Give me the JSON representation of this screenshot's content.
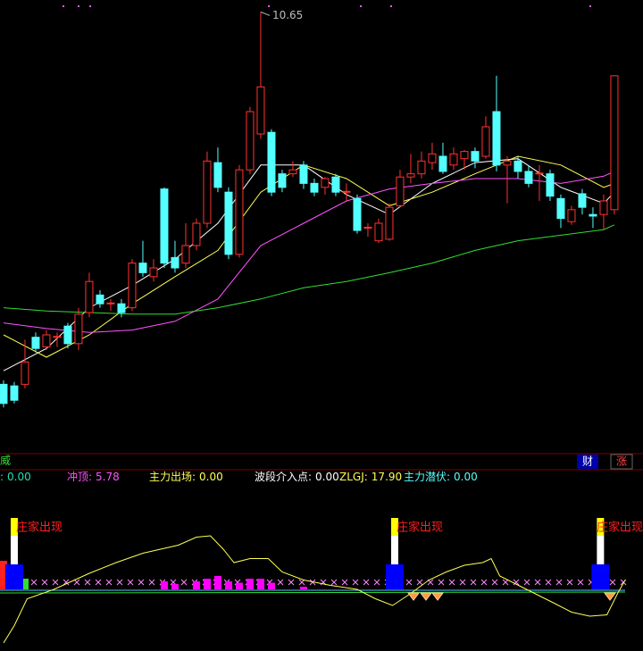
{
  "toolbar": {
    "left": "威",
    "buttons": [
      "财",
      "涨"
    ]
  },
  "chart_data": [
    {
      "type": "candlestick",
      "xlim": [
        -0.33,
        59.67
      ],
      "ylim": [
        5.2,
        10.8
      ],
      "up_color": "#ff3232",
      "down_color": "#54ffff",
      "high_label_index": 24,
      "open": [
        5.98,
        5.96,
        5.98,
        6.57,
        6.45,
        6.57,
        6.71,
        6.49,
        6.88,
        7.1,
        6.99,
        6.99,
        6.94,
        7.5,
        7.33,
        8.43,
        7.57,
        7.5,
        7.72,
        8.0,
        8.76,
        8.39,
        7.61,
        8.67,
        9.12,
        9.14,
        8.62,
        8.62,
        8.73,
        8.5,
        8.45,
        8.58,
        8.39,
        8.31,
        7.94,
        7.78,
        7.8,
        8.22,
        8.58,
        8.62,
        8.76,
        8.84,
        8.73,
        8.81,
        8.9,
        8.84,
        9.4,
        8.73,
        8.78,
        8.65,
        8.62,
        8.62,
        8.31,
        8.02,
        8.37,
        8.11,
        8.11,
        8.17
      ],
      "close": [
        5.74,
        5.78,
        6.26,
        6.43,
        6.6,
        6.58,
        6.49,
        6.86,
        7.27,
        6.99,
        7.0,
        6.88,
        7.5,
        7.38,
        7.44,
        7.5,
        7.44,
        7.72,
        8.0,
        8.78,
        8.45,
        7.61,
        8.67,
        9.4,
        9.71,
        8.39,
        8.45,
        8.67,
        8.5,
        8.39,
        8.56,
        8.39,
        8.4,
        7.91,
        7.95,
        8.0,
        8.2,
        8.58,
        8.62,
        8.78,
        8.87,
        8.65,
        8.87,
        8.9,
        8.78,
        9.21,
        8.73,
        8.78,
        8.65,
        8.5,
        8.63,
        8.34,
        8.06,
        8.17,
        8.2,
        8.09,
        8.28,
        9.85
      ],
      "high": [
        6.03,
        6.01,
        6.54,
        6.63,
        6.66,
        6.63,
        6.75,
        6.94,
        7.38,
        7.16,
        7.05,
        7.05,
        7.55,
        7.78,
        7.55,
        8.45,
        7.78,
        8.0,
        8.06,
        8.9,
        8.95,
        8.45,
        8.73,
        9.46,
        10.65,
        9.18,
        8.67,
        8.78,
        8.78,
        8.56,
        8.58,
        8.62,
        8.5,
        8.36,
        8.0,
        8.06,
        8.25,
        8.67,
        8.87,
        8.9,
        9.01,
        9.01,
        8.95,
        8.92,
        8.95,
        9.34,
        9.85,
        8.84,
        8.84,
        8.73,
        8.73,
        8.67,
        8.36,
        8.22,
        8.43,
        8.2,
        8.36,
        9.85
      ],
      "low": [
        5.69,
        5.74,
        5.93,
        6.38,
        6.41,
        6.45,
        6.43,
        6.41,
        6.82,
        6.94,
        6.9,
        6.82,
        6.9,
        7.33,
        7.27,
        7.44,
        7.38,
        7.44,
        7.66,
        7.94,
        8.39,
        7.55,
        7.57,
        8.62,
        9.06,
        8.34,
        8.39,
        8.58,
        8.43,
        8.34,
        8.36,
        8.34,
        8.28,
        7.87,
        7.83,
        7.75,
        7.78,
        8.2,
        8.5,
        8.56,
        8.67,
        8.62,
        8.67,
        8.67,
        8.69,
        8.81,
        8.65,
        8.25,
        8.56,
        8.45,
        8.28,
        8.28,
        7.94,
        7.98,
        8.11,
        7.94,
        7.91,
        8.11
      ],
      "lines": [
        {
          "color": "#ffffff",
          "x": [
            0,
            4,
            8,
            12,
            16,
            20,
            24,
            28,
            32,
            36,
            40,
            44,
            48,
            52,
            56,
            57
          ],
          "values": [
            6.15,
            6.43,
            6.94,
            7.22,
            7.55,
            8.0,
            8.73,
            8.73,
            8.36,
            8.11,
            8.5,
            8.76,
            8.81,
            8.45,
            8.25,
            8.39
          ]
        },
        {
          "color": "#ffff54",
          "x": [
            0,
            4,
            8,
            12,
            16,
            20,
            24,
            28,
            32,
            36,
            40,
            44,
            48,
            52,
            56,
            57
          ],
          "values": [
            6.6,
            6.32,
            6.6,
            6.99,
            7.33,
            7.66,
            8.39,
            8.73,
            8.56,
            8.22,
            8.39,
            8.62,
            8.84,
            8.73,
            8.45,
            8.5
          ]
        },
        {
          "color": "#ff54ff",
          "x": [
            0,
            4,
            8,
            12,
            16,
            20,
            24,
            28,
            32,
            36,
            40,
            44,
            48,
            52,
            56,
            57
          ],
          "values": [
            6.75,
            6.68,
            6.63,
            6.66,
            6.77,
            7.05,
            7.72,
            8.0,
            8.28,
            8.43,
            8.5,
            8.56,
            8.56,
            8.5,
            8.59,
            8.65
          ]
        },
        {
          "color": "#33dd33",
          "x": [
            0,
            4,
            8,
            12,
            16,
            20,
            24,
            28,
            32,
            36,
            40,
            44,
            48,
            52,
            56,
            57
          ],
          "values": [
            6.94,
            6.9,
            6.88,
            6.86,
            6.86,
            6.94,
            7.05,
            7.19,
            7.27,
            7.38,
            7.5,
            7.66,
            7.78,
            7.85,
            7.92,
            7.98
          ]
        }
      ]
    },
    {
      "type": "indicator",
      "xlim": [
        -0.33,
        59.67
      ],
      "ylim": [
        -46,
        60
      ],
      "indicators": [
        {
          "label": ":",
          "value": "0.00",
          "color": "#22e0b0"
        },
        {
          "label": "冲顶:",
          "value": "5.78",
          "color": "#ff54ff"
        },
        {
          "label": "主力出场:",
          "value": "0.00",
          "color": "#ffff54"
        },
        {
          "label": "波段介入点:",
          "value": "0.00",
          "color": "#ffffff"
        },
        {
          "label": "ZLGJ:",
          "value": "17.90",
          "color": "#ffff54"
        },
        {
          "label": "主力潜伏:",
          "value": "0.00",
          "color": "#54ffff"
        }
      ],
      "line": {
        "color": "#ffff54",
        "x": [
          0,
          1,
          2.2,
          4.7,
          8,
          10.5,
          13,
          16.3,
          18,
          19.3,
          20.5,
          21.5,
          23,
          24.7,
          26,
          28,
          30.5,
          33,
          34.7,
          36.3,
          38,
          39.7,
          41.3,
          43,
          44.7,
          45.5,
          46.3,
          48.8,
          51.3,
          53,
          54.7,
          56.3,
          57.3,
          58
        ],
        "values": [
          -40,
          -27,
          -7,
          0,
          12,
          20,
          27,
          33,
          39,
          40,
          30,
          20,
          23,
          23,
          13,
          7,
          3,
          0,
          -7,
          -12,
          -3,
          7,
          13,
          18,
          20,
          23,
          10,
          0,
          -10,
          -17,
          -20,
          -19,
          -3,
          7
        ]
      },
      "bars": {
        "color": "#ff00ff",
        "x": [
          15,
          16,
          18,
          19,
          20,
          21,
          22,
          23,
          24,
          25,
          28
        ],
        "values": [
          6,
          4,
          6,
          8,
          10,
          6,
          5,
          8,
          8,
          5,
          2
        ]
      },
      "signals": {
        "color": "#ff2020",
        "x": [
          1,
          36.5,
          55.7
        ],
        "labels": [
          "庄家出现",
          "庄家出现",
          "庄家出现"
        ]
      }
    }
  ]
}
